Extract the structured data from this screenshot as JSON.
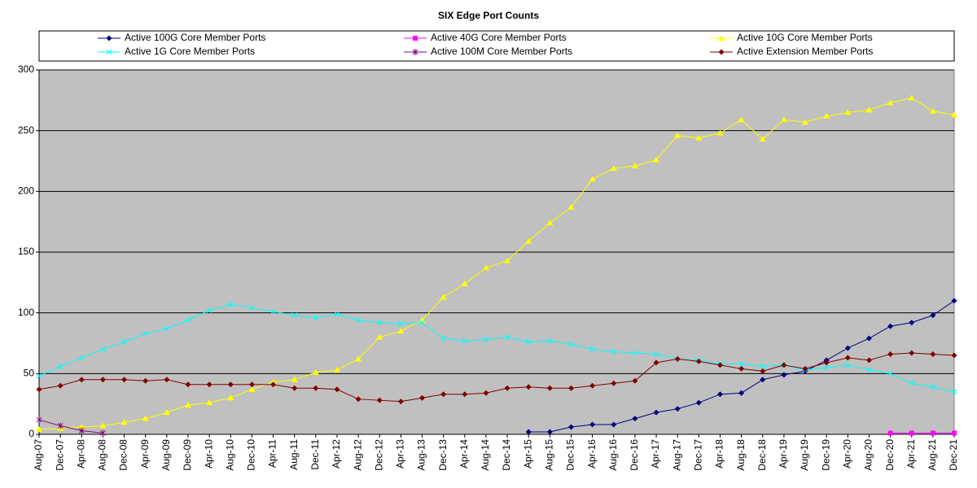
{
  "chart_data": {
    "type": "line",
    "title": "SIX Edge Port Counts",
    "categories": [
      "Aug-07",
      "Dec-07",
      "Apr-08",
      "Aug-08",
      "Dec-08",
      "Apr-09",
      "Aug-09",
      "Dec-09",
      "Apr-10",
      "Aug-10",
      "Dec-10",
      "Apr-11",
      "Aug-11",
      "Dec-11",
      "Apr-12",
      "Aug-12",
      "Dec-12",
      "Apr-13",
      "Aug-13",
      "Dec-13",
      "Apr-14",
      "Aug-14",
      "Dec-14",
      "Apr-15",
      "Aug-15",
      "Dec-15",
      "Apr-16",
      "Aug-16",
      "Dec-16",
      "Apr-17",
      "Aug-17",
      "Dec-17",
      "Apr-18",
      "Aug-18",
      "Dec-18",
      "Apr-19",
      "Aug-19",
      "Dec-19",
      "Apr-20",
      "Aug-20",
      "Dec-20",
      "Apr-21",
      "Aug-21",
      "Dec-21"
    ],
    "series": [
      {
        "name": "Active 100G Core Member Ports",
        "color": "#000080",
        "marker": "diamond",
        "values": [
          null,
          null,
          null,
          null,
          null,
          null,
          null,
          null,
          null,
          null,
          null,
          null,
          null,
          null,
          null,
          null,
          null,
          null,
          null,
          null,
          null,
          null,
          null,
          2,
          2,
          6,
          8,
          8,
          13,
          18,
          21,
          26,
          33,
          34,
          45,
          49,
          52,
          61,
          71,
          79,
          89,
          92,
          98,
          110
        ]
      },
      {
        "name": "Active 40G Core Member Ports",
        "color": "#ff00ff",
        "marker": "square",
        "values": [
          null,
          null,
          null,
          null,
          null,
          null,
          null,
          null,
          null,
          null,
          null,
          null,
          null,
          null,
          null,
          null,
          null,
          null,
          null,
          null,
          null,
          null,
          null,
          null,
          null,
          null,
          null,
          null,
          null,
          null,
          null,
          null,
          null,
          null,
          null,
          null,
          null,
          null,
          null,
          null,
          1,
          1,
          1,
          1
        ]
      },
      {
        "name": "Active 10G Core Member Ports",
        "color": "#ffff00",
        "marker": "triangle",
        "values": [
          4,
          5,
          6,
          7,
          10,
          13,
          18,
          24,
          26,
          30,
          37,
          43,
          45,
          51,
          53,
          62,
          80,
          85,
          94,
          113,
          124,
          137,
          143,
          159,
          174,
          187,
          210,
          219,
          221,
          226,
          246,
          244,
          248,
          259,
          243,
          259,
          257,
          262,
          265,
          267,
          273,
          277,
          266,
          263
        ]
      },
      {
        "name": "Active 1G Core Member Ports",
        "color": "#00ffff",
        "marker": "x",
        "values": [
          48,
          56,
          63,
          70,
          76,
          83,
          87,
          94,
          102,
          107,
          104,
          101,
          98,
          96,
          99,
          94,
          92,
          91,
          92,
          79,
          77,
          78,
          80,
          76,
          77,
          74,
          70,
          68,
          67,
          66,
          62,
          61,
          58,
          58,
          56,
          57,
          53,
          55,
          57,
          53,
          50,
          42,
          39,
          35
        ]
      },
      {
        "name": "Active 100M Core Member Ports",
        "color": "#800080",
        "marker": "star",
        "values": [
          12,
          7,
          3,
          1,
          null,
          null,
          null,
          null,
          null,
          null,
          null,
          null,
          null,
          null,
          null,
          null,
          null,
          null,
          null,
          null,
          null,
          null,
          null,
          null,
          null,
          null,
          null,
          null,
          null,
          null,
          null,
          null,
          null,
          null,
          null,
          null,
          null,
          null,
          null,
          null,
          null,
          null,
          null,
          null
        ]
      },
      {
        "name": "Active Extension Member Ports",
        "color": "#800000",
        "marker": "diamond",
        "values": [
          37,
          40,
          45,
          45,
          45,
          44,
          45,
          41,
          41,
          41,
          41,
          41,
          38,
          38,
          37,
          29,
          28,
          27,
          30,
          33,
          33,
          34,
          38,
          39,
          38,
          38,
          40,
          42,
          44,
          59,
          62,
          60,
          57,
          54,
          52,
          57,
          54,
          59,
          63,
          61,
          66,
          67,
          66,
          65
        ]
      }
    ],
    "ylim": [
      0,
      300
    ],
    "yticks": [
      0,
      50,
      100,
      150,
      200,
      250,
      300
    ],
    "grid": true,
    "plot_background": "#c0c0c0",
    "legend": "top"
  }
}
